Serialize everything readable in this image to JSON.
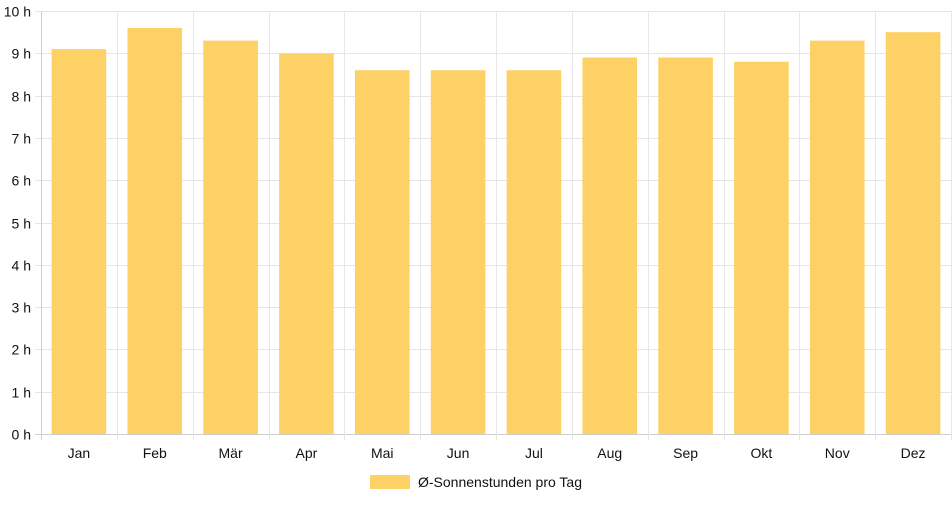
{
  "chart_data": {
    "type": "bar",
    "categories": [
      "Jan",
      "Feb",
      "Mär",
      "Apr",
      "Mai",
      "Jun",
      "Jul",
      "Aug",
      "Sep",
      "Okt",
      "Nov",
      "Dez"
    ],
    "series": [
      {
        "name": "Ø-Sonnenstunden pro Tag",
        "values": [
          9.1,
          9.6,
          9.3,
          9.0,
          8.6,
          8.6,
          8.6,
          8.9,
          8.9,
          8.8,
          9.3,
          9.5
        ],
        "color": "#fed166"
      }
    ],
    "title": "",
    "xlabel": "",
    "ylabel": "",
    "ylim": [
      0,
      10
    ],
    "y_ticks": [
      0,
      1,
      2,
      3,
      4,
      5,
      6,
      7,
      8,
      9,
      10
    ],
    "y_tick_suffix": " h",
    "grid": true,
    "legend_position": "bottom"
  }
}
